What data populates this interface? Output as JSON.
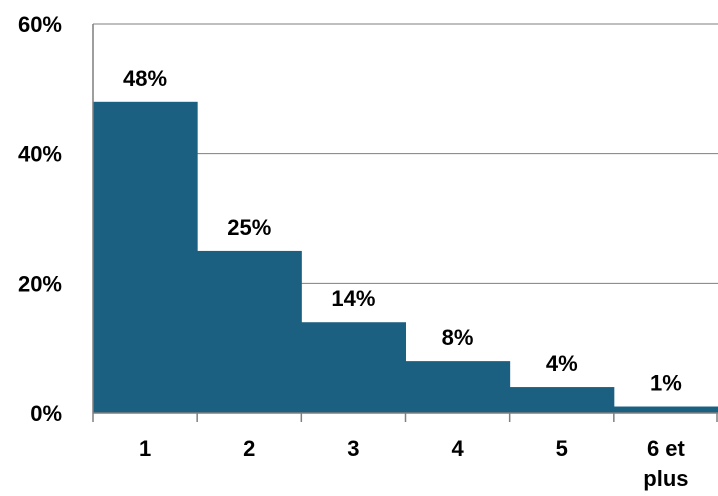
{
  "chart_data": {
    "type": "bar",
    "categories": [
      "1",
      "2",
      "3",
      "4",
      "5",
      "6 et plus"
    ],
    "category_lines": [
      [
        "1"
      ],
      [
        "2"
      ],
      [
        "3"
      ],
      [
        "4"
      ],
      [
        "5"
      ],
      [
        "6 et",
        "plus"
      ]
    ],
    "values": [
      48,
      25,
      14,
      8,
      4,
      1
    ],
    "data_labels": [
      "48%",
      "25%",
      "14%",
      "8%",
      "4%",
      "1%"
    ],
    "ylim": [
      0,
      60
    ],
    "yticks": [
      0,
      20,
      40,
      60
    ],
    "ytick_labels": [
      "0%",
      "20%",
      "40%",
      "60%"
    ],
    "title": "",
    "xlabel": "",
    "ylabel": "",
    "grid": true,
    "legend": "none",
    "bar_color": "#1b6080",
    "gridline_color": "#7f7f7f"
  }
}
